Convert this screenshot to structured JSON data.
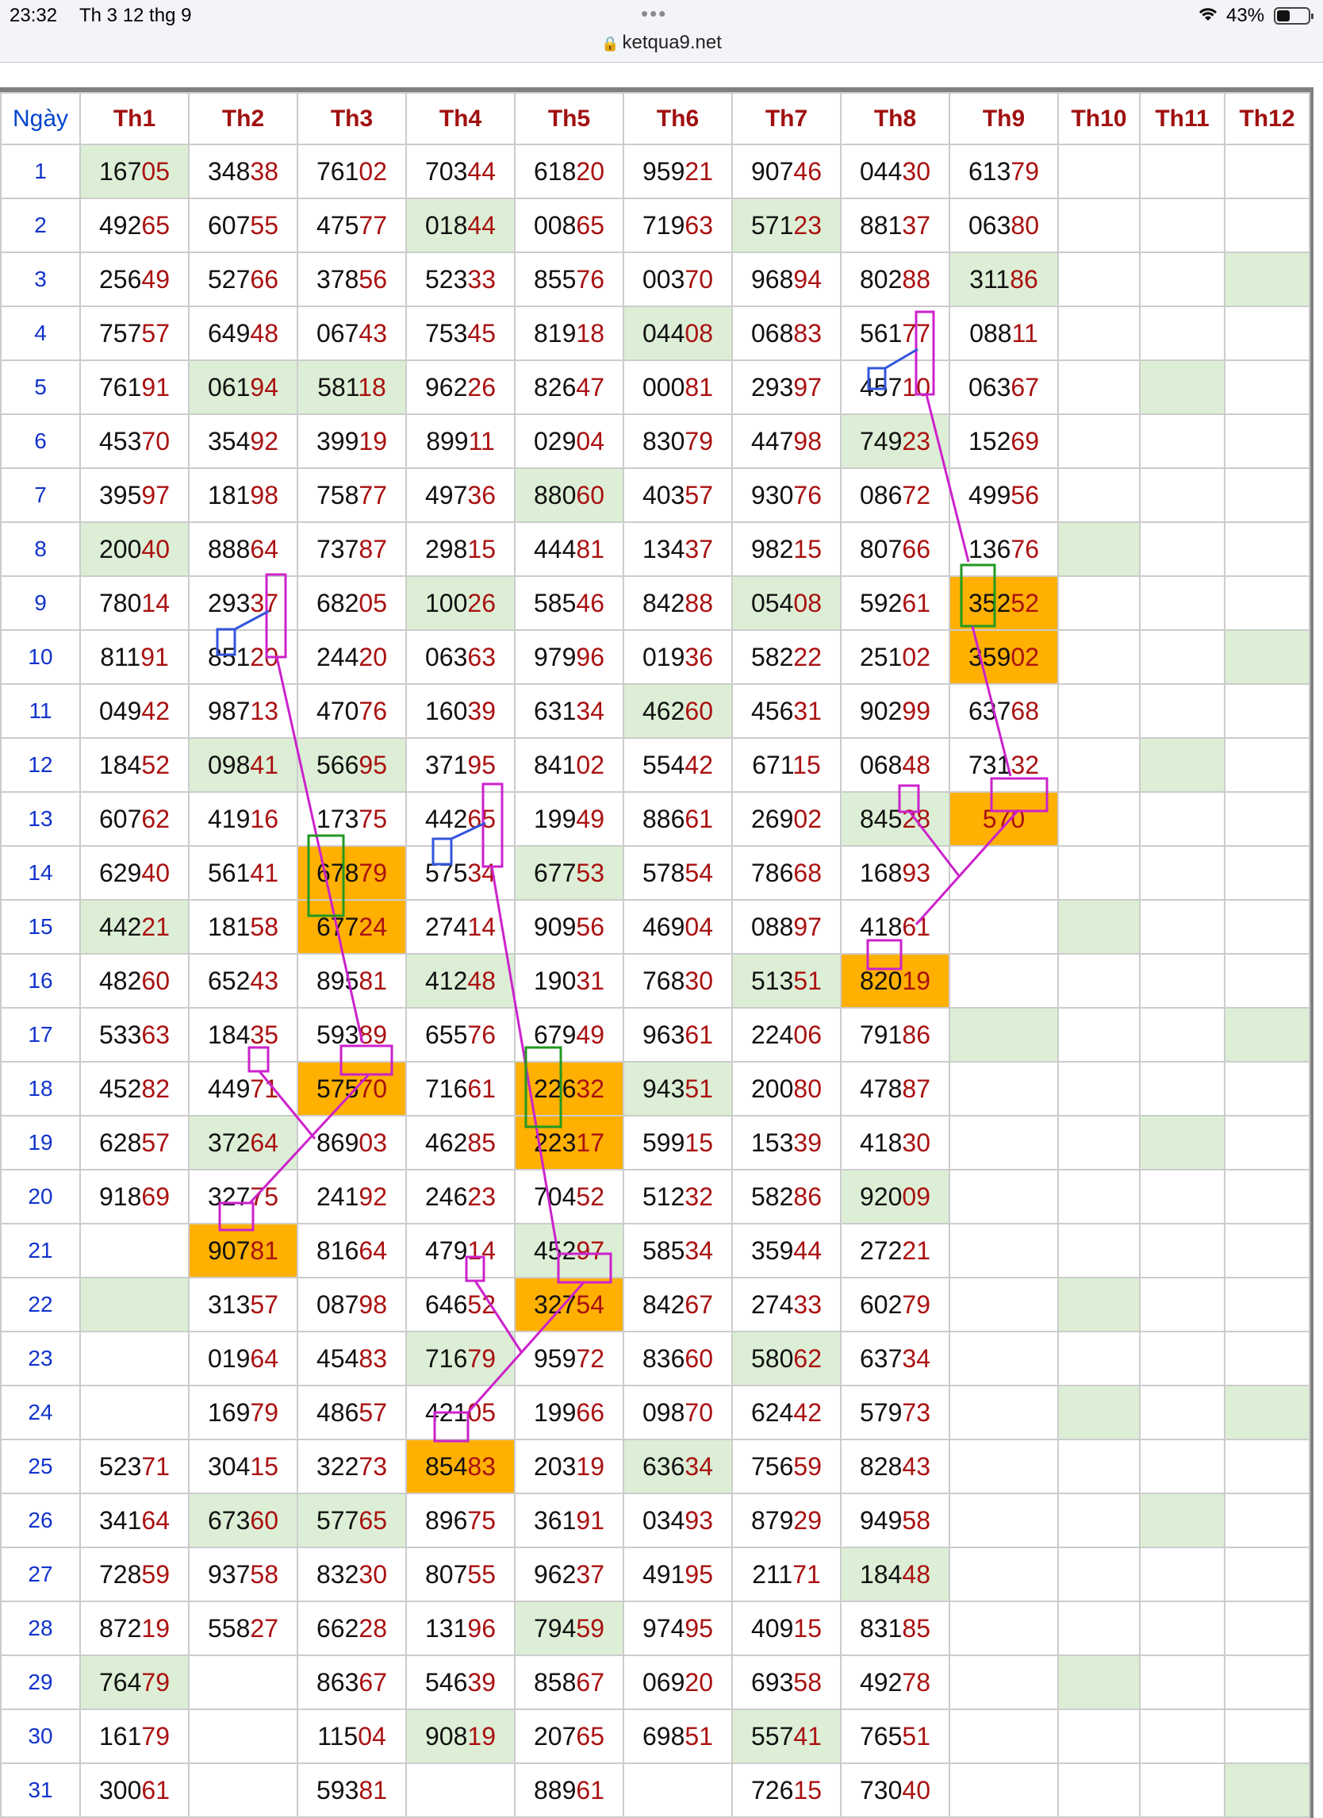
{
  "status_bar": {
    "time": "23:32",
    "date": "Th 3 12 thg 9",
    "dots": "•••",
    "url": "ketqua9.net",
    "battery": "43%"
  },
  "table": {
    "headers": [
      "Ngày",
      "Th1",
      "Th2",
      "Th3",
      "Th4",
      "Th5",
      "Th6",
      "Th7",
      "Th8",
      "Th9",
      "Th10",
      "Th11",
      "Th12"
    ],
    "rows": [
      [
        "1",
        "16705",
        "34838",
        "76102",
        "70344",
        "61820",
        "95921",
        "90746",
        "04430",
        "61379",
        "",
        "",
        ""
      ],
      [
        "2",
        "49265",
        "60755",
        "47577",
        "01844",
        "00865",
        "71963",
        "57123",
        "88137",
        "06380",
        "",
        "",
        ""
      ],
      [
        "3",
        "25649",
        "52766",
        "37856",
        "52333",
        "85576",
        "00370",
        "96894",
        "80288",
        "31186",
        "",
        "",
        ""
      ],
      [
        "4",
        "75757",
        "64948",
        "06743",
        "75345",
        "81918",
        "04408",
        "06883",
        "56177",
        "08811",
        "",
        "",
        ""
      ],
      [
        "5",
        "76191",
        "06194",
        "58118",
        "96226",
        "82647",
        "00081",
        "29397",
        "45710",
        "06367",
        "",
        "",
        ""
      ],
      [
        "6",
        "45370",
        "35492",
        "39919",
        "89911",
        "02904",
        "83079",
        "44798",
        "74923",
        "15269",
        "",
        "",
        ""
      ],
      [
        "7",
        "39597",
        "18198",
        "75877",
        "49736",
        "88060",
        "40357",
        "93076",
        "08672",
        "49956",
        "",
        "",
        ""
      ],
      [
        "8",
        "20040",
        "88864",
        "73787",
        "29815",
        "44481",
        "13437",
        "98215",
        "80766",
        "13676",
        "",
        "",
        ""
      ],
      [
        "9",
        "78014",
        "29337",
        "68205",
        "10026",
        "58546",
        "84288",
        "05408",
        "59261",
        "35252",
        "",
        "",
        ""
      ],
      [
        "10",
        "81191",
        "85120",
        "24420",
        "06363",
        "97996",
        "01936",
        "58222",
        "25102",
        "35902",
        "",
        "",
        ""
      ],
      [
        "11",
        "04942",
        "98713",
        "47076",
        "16039",
        "63134",
        "46260",
        "45631",
        "90299",
        "63768",
        "",
        "",
        ""
      ],
      [
        "12",
        "18452",
        "09841",
        "56695",
        "37195",
        "84102",
        "55442",
        "67115",
        "06848",
        "73132",
        "",
        "",
        ""
      ],
      [
        "13",
        "60762",
        "41916",
        "17375",
        "44265",
        "19949",
        "88661",
        "26902",
        "84528",
        "570",
        "",
        "",
        ""
      ],
      [
        "14",
        "62940",
        "56141",
        "67879",
        "57534",
        "67753",
        "57854",
        "78668",
        "16893",
        "",
        "",
        "",
        ""
      ],
      [
        "15",
        "44221",
        "18158",
        "67724",
        "27414",
        "90956",
        "46904",
        "08897",
        "41861",
        "",
        "",
        "",
        ""
      ],
      [
        "16",
        "48260",
        "65243",
        "89581",
        "41248",
        "19031",
        "76830",
        "51351",
        "82019",
        "",
        "",
        "",
        ""
      ],
      [
        "17",
        "53363",
        "18435",
        "59389",
        "65576",
        "67949",
        "96361",
        "22406",
        "79186",
        "",
        "",
        "",
        ""
      ],
      [
        "18",
        "45282",
        "44971",
        "57570",
        "71661",
        "22632",
        "94351",
        "20080",
        "47887",
        "",
        "",
        "",
        ""
      ],
      [
        "19",
        "62857",
        "37264",
        "86903",
        "46285",
        "22317",
        "59915",
        "15339",
        "41830",
        "",
        "",
        "",
        ""
      ],
      [
        "20",
        "91869",
        "32775",
        "24192",
        "24623",
        "70452",
        "51232",
        "58286",
        "92009",
        "",
        "",
        "",
        ""
      ],
      [
        "21",
        "",
        "90781",
        "81664",
        "47914",
        "45297",
        "58534",
        "35944",
        "27221",
        "",
        "",
        "",
        ""
      ],
      [
        "22",
        "",
        "31357",
        "08798",
        "64652",
        "32754",
        "84267",
        "27433",
        "60279",
        "",
        "",
        "",
        ""
      ],
      [
        "23",
        "",
        "01964",
        "45483",
        "71679",
        "95972",
        "83660",
        "58062",
        "63734",
        "",
        "",
        "",
        ""
      ],
      [
        "24",
        "",
        "16979",
        "48657",
        "42105",
        "19966",
        "09870",
        "62442",
        "57973",
        "",
        "",
        "",
        ""
      ],
      [
        "25",
        "52371",
        "30415",
        "32273",
        "85483",
        "20319",
        "63634",
        "75659",
        "82843",
        "",
        "",
        "",
        ""
      ],
      [
        "26",
        "34164",
        "67360",
        "57765",
        "89675",
        "36191",
        "03493",
        "87929",
        "94958",
        "",
        "",
        "",
        ""
      ],
      [
        "27",
        "72859",
        "93758",
        "83230",
        "80755",
        "96237",
        "49195",
        "21171",
        "18448",
        "",
        "",
        "",
        ""
      ],
      [
        "28",
        "87219",
        "55827",
        "66228",
        "13196",
        "79459",
        "97495",
        "40915",
        "83185",
        "",
        "",
        "",
        ""
      ],
      [
        "29",
        "76479",
        "",
        "86367",
        "54639",
        "85867",
        "06920",
        "69358",
        "49278",
        "",
        "",
        "",
        ""
      ],
      [
        "30",
        "16179",
        "",
        "11504",
        "90819",
        "20765",
        "69851",
        "55741",
        "76551",
        "",
        "",
        "",
        ""
      ],
      [
        "31",
        "30061",
        "",
        "59381",
        "",
        "88961",
        "",
        "72615",
        "73040",
        "",
        "",
        "",
        ""
      ]
    ]
  },
  "colors": {
    "header_text": "#a01010",
    "ngay_text": "#0044cc",
    "day_text": "#1133cc",
    "digits_last_two": "#aa1111",
    "green_cell": "#dcefd6",
    "orange_cell": "#ffb000",
    "magenta_annotation": "#cc22cc",
    "blue_annotation": "#3355dd",
    "green_annotation": "#229922"
  }
}
